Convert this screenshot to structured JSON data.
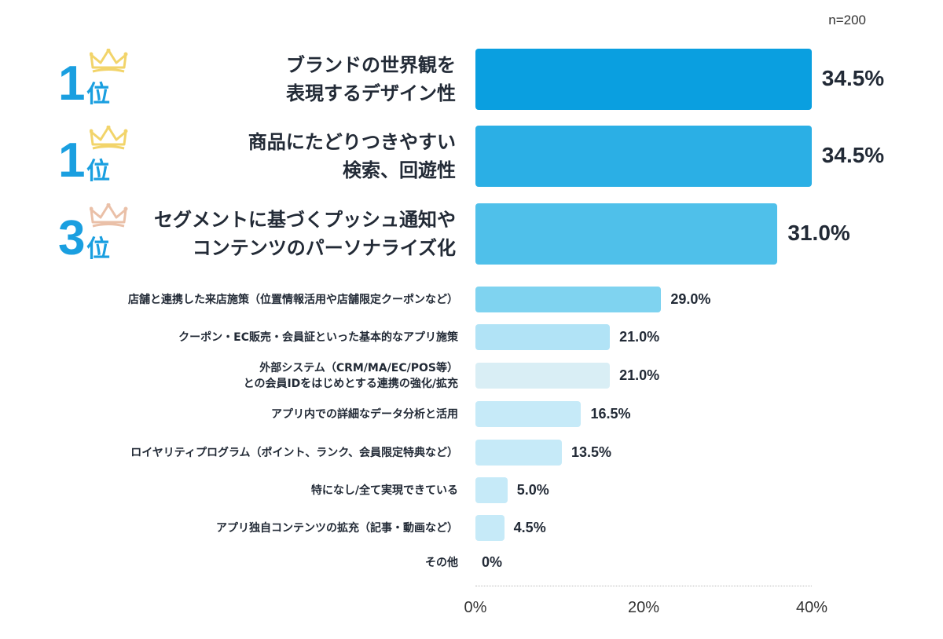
{
  "sample_size": "n=200",
  "chart_data": {
    "type": "bar",
    "orientation": "horizontal",
    "categories": [
      "ブランドの世界観を\n表現するデザイン性",
      "商品にたどりつきやすい\n検索、回遊性",
      "セグメントに基づくプッシュ通知や\nコンテンツのパーソナライズ化",
      "店舗と連携した来店施策（位置情報活用や店舗限定クーポンなど）",
      "クーポン・EC販売・会員証といった基本的なアプリ施策",
      "外部システム（CRM/MA/EC/POS等）\nとの会員IDをはじめとする連携の強化/拡充",
      "アプリ内での詳細なデータ分析と活用",
      "ロイヤリティプログラム（ポイント、ランク、会員限定特典など）",
      "特になし/全て実現できている",
      "アプリ独自コンテンツの拡充（記事・動画など）",
      "その他"
    ],
    "values": [
      34.5,
      34.5,
      31.0,
      29.0,
      21.0,
      21.0,
      16.5,
      13.5,
      5.0,
      4.5,
      0
    ],
    "value_labels": [
      "34.5%",
      "34.5%",
      "31.0%",
      "29.0%",
      "21.0%",
      "21.0%",
      "16.5%",
      "13.5%",
      "5.0%",
      "4.5%",
      "0%"
    ],
    "colors": [
      "#0a9fe0",
      "#2bafe5",
      "#4fc0ea",
      "#7fd3f0",
      "#b1e3f6",
      "#d9eef5",
      "#c6eaf8",
      "#c6eaf8",
      "#c6eaf8",
      "#c6eaf8",
      "#c6eaf8"
    ],
    "ranks": [
      {
        "number": "1",
        "suffix": "位",
        "crown_color": "#f2d46a"
      },
      {
        "number": "1",
        "suffix": "位",
        "crown_color": "#f2d46a"
      },
      {
        "number": "3",
        "suffix": "位",
        "crown_color": "#eac0a8"
      }
    ],
    "xticks": [
      "0%",
      "20%",
      "40%"
    ],
    "xlim": [
      0,
      40
    ],
    "grid": false,
    "legend": "none"
  }
}
